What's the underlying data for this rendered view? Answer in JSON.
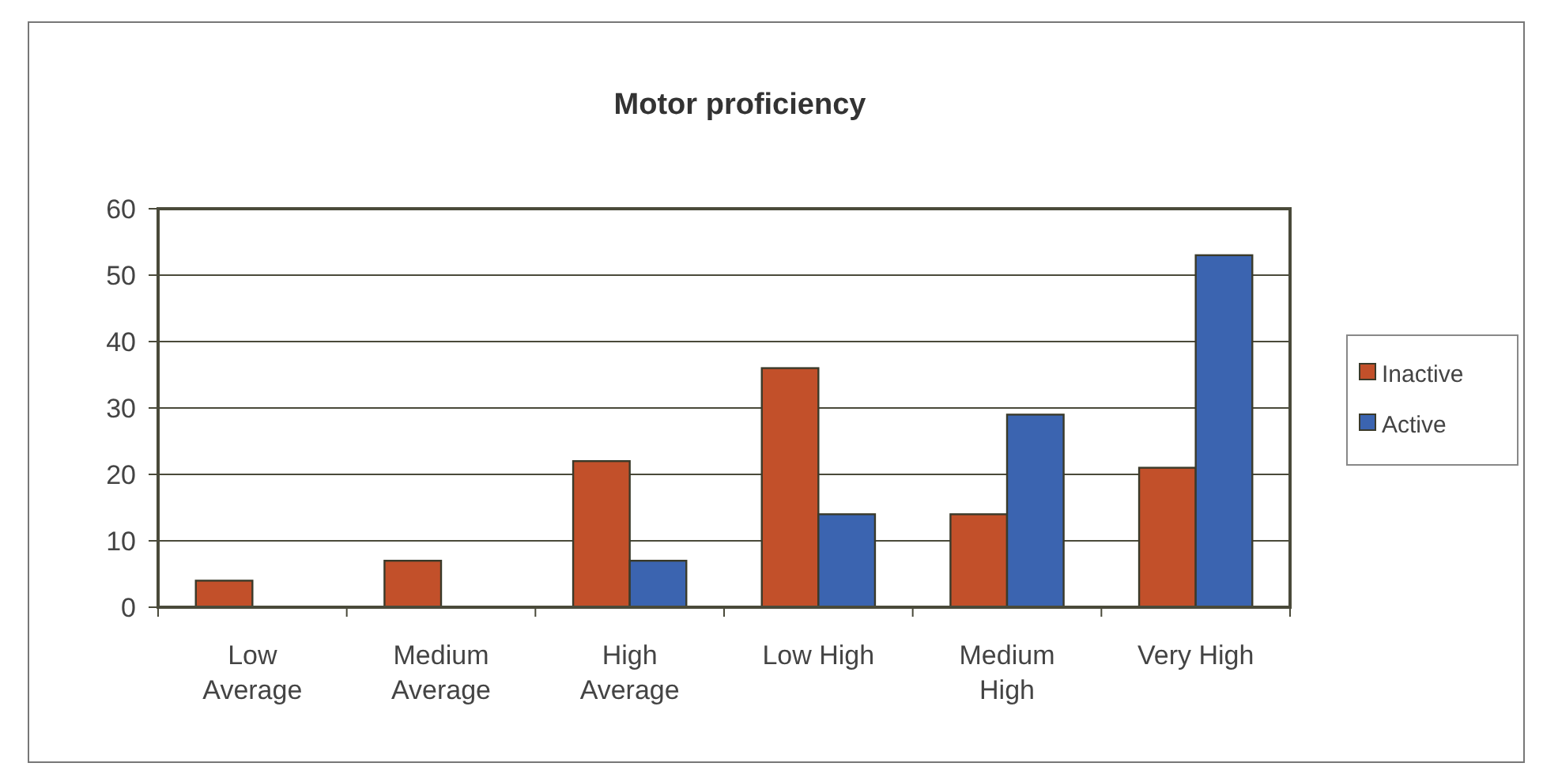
{
  "chart_data": {
    "type": "bar",
    "title": "Motor proficiency",
    "categories": [
      "Low Average",
      "Medium Average",
      "High Average",
      "Low High",
      "Medium High",
      "Very High"
    ],
    "series": [
      {
        "name": "Inactive",
        "color": "#c2502a",
        "values": [
          4,
          7,
          22,
          36,
          14,
          21
        ]
      },
      {
        "name": "Active",
        "color": "#3b64b0",
        "values": [
          0,
          0,
          7,
          14,
          29,
          53
        ]
      }
    ],
    "ylim": [
      0,
      60
    ],
    "yticks": [
      0,
      10,
      20,
      30,
      40,
      50,
      60
    ],
    "grid": "y",
    "legend": "right"
  }
}
